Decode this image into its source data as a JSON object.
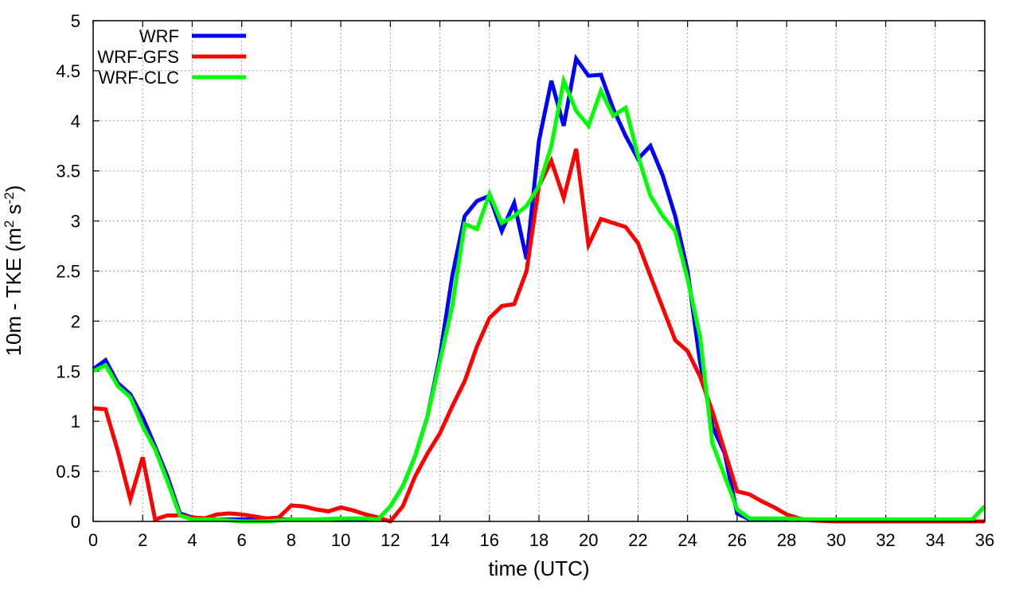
{
  "chart_data": {
    "type": "line",
    "xlabel": "time (UTC)",
    "ylabel_main": "10m - TKE (m",
    "ylabel_sup1": "2",
    "ylabel_mid": " s",
    "ylabel_sup2": "-2",
    "ylabel_end": ")",
    "xlim": [
      0,
      36
    ],
    "ylim": [
      0,
      5
    ],
    "x_ticks": [
      0,
      2,
      4,
      6,
      8,
      10,
      12,
      14,
      16,
      18,
      20,
      22,
      24,
      26,
      28,
      30,
      32,
      34,
      36
    ],
    "y_ticks": [
      0,
      0.5,
      1,
      1.5,
      2,
      2.5,
      3,
      3.5,
      4,
      4.5,
      5
    ],
    "grid": true,
    "legend_position": "top-left",
    "series": [
      {
        "name": "WRF",
        "color": "#0000ff",
        "points": [
          [
            0,
            1.52
          ],
          [
            0.5,
            1.61
          ],
          [
            1,
            1.38
          ],
          [
            1.5,
            1.27
          ],
          [
            2,
            1.04
          ],
          [
            2.5,
            0.75
          ],
          [
            3,
            0.45
          ],
          [
            3.5,
            0.08
          ],
          [
            4,
            0.04
          ],
          [
            5,
            0.02
          ],
          [
            6,
            0.02
          ],
          [
            7,
            0.02
          ],
          [
            8,
            0.02
          ],
          [
            9,
            0.02
          ],
          [
            10,
            0.02
          ],
          [
            11,
            0.02
          ],
          [
            11.5,
            0.02
          ],
          [
            12,
            0.15
          ],
          [
            12.5,
            0.35
          ],
          [
            13,
            0.65
          ],
          [
            13.5,
            1.05
          ],
          [
            14,
            1.65
          ],
          [
            14.5,
            2.45
          ],
          [
            15,
            3.05
          ],
          [
            15.5,
            3.2
          ],
          [
            16,
            3.25
          ],
          [
            16.5,
            2.9
          ],
          [
            17,
            3.18
          ],
          [
            17.5,
            2.62
          ],
          [
            18,
            3.8
          ],
          [
            18.5,
            4.4
          ],
          [
            19,
            3.95
          ],
          [
            19.5,
            4.62
          ],
          [
            20,
            4.45
          ],
          [
            20.5,
            4.46
          ],
          [
            21,
            4.12
          ],
          [
            21.5,
            3.85
          ],
          [
            22,
            3.62
          ],
          [
            22.5,
            3.75
          ],
          [
            23,
            3.45
          ],
          [
            23.5,
            3.05
          ],
          [
            24,
            2.5
          ],
          [
            24.5,
            1.6
          ],
          [
            25,
            0.95
          ],
          [
            25.5,
            0.68
          ],
          [
            26,
            0.08
          ],
          [
            26.5,
            0.02
          ],
          [
            27,
            0.02
          ],
          [
            28,
            0.02
          ],
          [
            29,
            0.02
          ],
          [
            30,
            0.02
          ],
          [
            31,
            0.02
          ],
          [
            32,
            0.02
          ],
          [
            33,
            0.02
          ],
          [
            34,
            0.02
          ],
          [
            35,
            0.02
          ],
          [
            35.5,
            0.02
          ],
          [
            36,
            0.15
          ]
        ]
      },
      {
        "name": "WRF-GFS",
        "color": "#ff0000",
        "points": [
          [
            0,
            1.13
          ],
          [
            0.5,
            1.12
          ],
          [
            1,
            0.7
          ],
          [
            1.5,
            0.22
          ],
          [
            2,
            0.64
          ],
          [
            2.5,
            0.02
          ],
          [
            3,
            0.06
          ],
          [
            3.5,
            0.06
          ],
          [
            4,
            0.04
          ],
          [
            4.5,
            0.03
          ],
          [
            5,
            0.07
          ],
          [
            5.5,
            0.08
          ],
          [
            6,
            0.07
          ],
          [
            6.5,
            0.05
          ],
          [
            7,
            0.03
          ],
          [
            7.5,
            0.04
          ],
          [
            8,
            0.16
          ],
          [
            8.5,
            0.15
          ],
          [
            9,
            0.12
          ],
          [
            9.5,
            0.1
          ],
          [
            10,
            0.14
          ],
          [
            10.5,
            0.11
          ],
          [
            11,
            0.07
          ],
          [
            11.5,
            0.04
          ],
          [
            12,
            0.0
          ],
          [
            12.5,
            0.15
          ],
          [
            13,
            0.45
          ],
          [
            13.5,
            0.68
          ],
          [
            14,
            0.88
          ],
          [
            14.5,
            1.15
          ],
          [
            15,
            1.4
          ],
          [
            15.5,
            1.75
          ],
          [
            16,
            2.03
          ],
          [
            16.5,
            2.15
          ],
          [
            17,
            2.17
          ],
          [
            17.5,
            2.5
          ],
          [
            18,
            3.35
          ],
          [
            18.5,
            3.6
          ],
          [
            19,
            3.23
          ],
          [
            19.5,
            3.72
          ],
          [
            20,
            2.76
          ],
          [
            20.5,
            3.02
          ],
          [
            21,
            2.98
          ],
          [
            21.5,
            2.94
          ],
          [
            22,
            2.78
          ],
          [
            22.5,
            2.45
          ],
          [
            23,
            2.13
          ],
          [
            23.5,
            1.81
          ],
          [
            24,
            1.7
          ],
          [
            24.5,
            1.45
          ],
          [
            25,
            1.1
          ],
          [
            25.5,
            0.7
          ],
          [
            26,
            0.3
          ],
          [
            26.5,
            0.27
          ],
          [
            27,
            0.2
          ],
          [
            27.5,
            0.14
          ],
          [
            28,
            0.07
          ],
          [
            28.5,
            0.03
          ],
          [
            29,
            0.01
          ],
          [
            30,
            0.0
          ],
          [
            31,
            0.0
          ],
          [
            32,
            0.0
          ],
          [
            33,
            0.0
          ],
          [
            34,
            0.0
          ],
          [
            35,
            0.0
          ],
          [
            36,
            0.0
          ]
        ]
      },
      {
        "name": "WRF-CLC",
        "color": "#00ff00",
        "points": [
          [
            0,
            1.5
          ],
          [
            0.5,
            1.56
          ],
          [
            1,
            1.35
          ],
          [
            1.5,
            1.24
          ],
          [
            2,
            0.95
          ],
          [
            2.5,
            0.72
          ],
          [
            3,
            0.4
          ],
          [
            3.5,
            0.06
          ],
          [
            4,
            0.02
          ],
          [
            5,
            0.02
          ],
          [
            6,
            0.0
          ],
          [
            7,
            0.0
          ],
          [
            8,
            0.02
          ],
          [
            9,
            0.02
          ],
          [
            10,
            0.03
          ],
          [
            11,
            0.03
          ],
          [
            11.5,
            0.02
          ],
          [
            12,
            0.15
          ],
          [
            12.5,
            0.35
          ],
          [
            13,
            0.65
          ],
          [
            13.5,
            1.05
          ],
          [
            14,
            1.6
          ],
          [
            14.5,
            2.15
          ],
          [
            15,
            2.97
          ],
          [
            15.5,
            2.92
          ],
          [
            16,
            3.27
          ],
          [
            16.5,
            2.98
          ],
          [
            17,
            3.05
          ],
          [
            17.5,
            3.15
          ],
          [
            18,
            3.35
          ],
          [
            18.5,
            3.75
          ],
          [
            19,
            4.4
          ],
          [
            19.5,
            4.1
          ],
          [
            20,
            3.95
          ],
          [
            20.5,
            4.3
          ],
          [
            21,
            4.05
          ],
          [
            21.5,
            4.13
          ],
          [
            22,
            3.65
          ],
          [
            22.5,
            3.25
          ],
          [
            23,
            3.05
          ],
          [
            23.5,
            2.9
          ],
          [
            24,
            2.42
          ],
          [
            24.5,
            1.85
          ],
          [
            25,
            0.78
          ],
          [
            25.5,
            0.45
          ],
          [
            26,
            0.12
          ],
          [
            26.5,
            0.03
          ],
          [
            27,
            0.03
          ],
          [
            28,
            0.03
          ],
          [
            29,
            0.02
          ],
          [
            30,
            0.02
          ],
          [
            31,
            0.02
          ],
          [
            32,
            0.02
          ],
          [
            33,
            0.02
          ],
          [
            34,
            0.02
          ],
          [
            35,
            0.02
          ],
          [
            35.5,
            0.02
          ],
          [
            36,
            0.15
          ]
        ]
      }
    ]
  }
}
